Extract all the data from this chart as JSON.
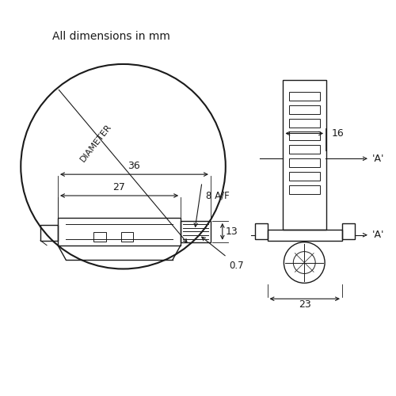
{
  "bg_color": "#ffffff",
  "line_color": "#1a1a1a",
  "figsize": [
    5.0,
    5.0
  ],
  "dpi": 100,
  "footnote": "All dimensions in mm",
  "dims": {
    "dim_36_label": "36",
    "dim_27_label": "27",
    "dim_8af_label": "8 A/F",
    "dim_13_label": "13",
    "dim_23_label": "23",
    "dim_16_label": "16",
    "dim_07_label": "0.7",
    "diameter_label": "DIAMETER",
    "a_label": "'A'"
  }
}
